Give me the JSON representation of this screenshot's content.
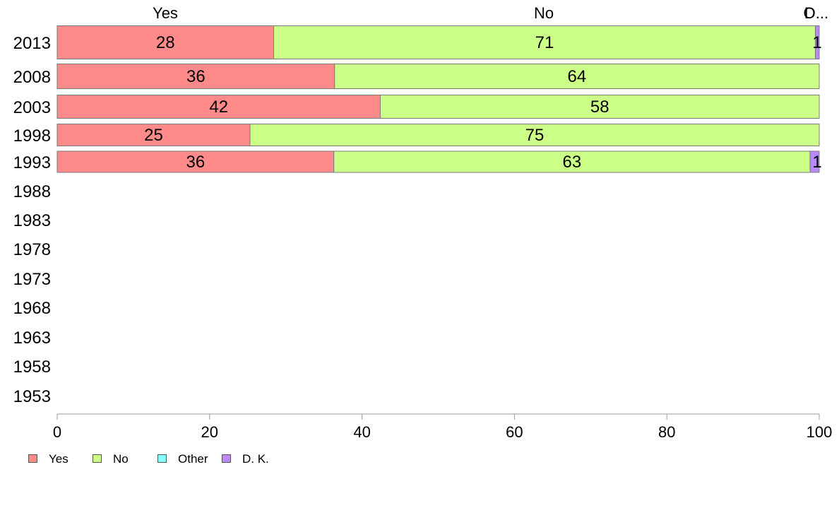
{
  "chart_data": {
    "type": "bar",
    "orientation": "horizontal",
    "stacked": true,
    "categories": [
      "2013",
      "2008",
      "2003",
      "1998",
      "1993",
      "1988",
      "1983",
      "1978",
      "1973",
      "1968",
      "1963",
      "1958",
      "1953"
    ],
    "series": [
      {
        "name": "Yes",
        "color": "#ff8a8a",
        "values": [
          28.4,
          36.4,
          42.4,
          25.3,
          36.3,
          null,
          null,
          null,
          null,
          null,
          null,
          null,
          null
        ]
      },
      {
        "name": "No",
        "color": "#ccff88",
        "values": [
          71.1,
          63.6,
          57.6,
          74.7,
          62.5,
          null,
          null,
          null,
          null,
          null,
          null,
          null,
          null
        ]
      },
      {
        "name": "Other",
        "color": "#88ffff",
        "values": [
          0.0,
          0,
          0,
          0,
          0,
          null,
          null,
          null,
          null,
          null,
          null,
          null,
          null
        ]
      },
      {
        "name": "D. K.",
        "color": "#bb88ff",
        "values": [
          0.5,
          0,
          0,
          0,
          1.2,
          null,
          null,
          null,
          null,
          null,
          null,
          null,
          null
        ]
      }
    ],
    "data_labels": [
      [
        "28",
        "71",
        "",
        "1"
      ],
      [
        "36",
        "64",
        "",
        ""
      ],
      [
        "42",
        "58",
        "",
        ""
      ],
      [
        "25",
        "75",
        "",
        ""
      ],
      [
        "36",
        "63",
        "",
        "1"
      ]
    ],
    "top_labels": [
      "Yes",
      "No",
      "O",
      "D..."
    ],
    "xlim": [
      0,
      100
    ],
    "xticks": [
      0,
      20,
      40,
      60,
      80,
      100
    ],
    "grid": false,
    "legend": {
      "placement": "bottom-left",
      "entries": [
        "Yes",
        "No",
        "Other",
        "D. K."
      ]
    }
  }
}
